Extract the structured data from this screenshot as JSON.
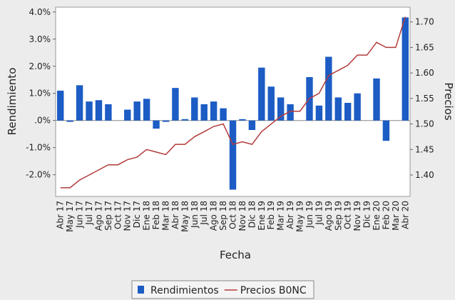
{
  "chart_data": {
    "type": "bar-line",
    "x_label": "Fecha",
    "y_label": "Rendimiento",
    "y2_label": "Precios",
    "categories": [
      "Abr 17",
      "May 17",
      "Jun 17",
      "Jul 17",
      "Ago 17",
      "Sep 17",
      "Oct 17",
      "Nov 17",
      "Dic 17",
      "Ene 18",
      "Feb 18",
      "Mar 18",
      "Abr 18",
      "May 18",
      "Jun 18",
      "Jul 18",
      "Ago 18",
      "Sep 18",
      "Oct 18",
      "Nov 18",
      "Dic 18",
      "Ene 19",
      "Feb 19",
      "Mar 19",
      "Abr 19",
      "May 19",
      "Jun 19",
      "Jul 19",
      "Ago 19",
      "Sep 19",
      "Oct 19",
      "Nov 19",
      "Dic 19",
      "Ene 20",
      "Feb 20",
      "Mar 20",
      "Abr 20"
    ],
    "series": [
      {
        "name": "Rendimientos",
        "type": "bar",
        "color": "#1c5cc4",
        "values": [
          1.1,
          -0.05,
          1.3,
          0.7,
          0.75,
          0.6,
          0.0,
          0.4,
          0.7,
          0.8,
          -0.3,
          -0.05,
          1.2,
          0.05,
          0.85,
          0.6,
          0.7,
          0.45,
          -2.55,
          0.05,
          -0.35,
          1.95,
          1.25,
          0.85,
          0.6,
          0.0,
          1.6,
          0.55,
          2.35,
          0.85,
          0.65,
          1.0,
          0.0,
          1.55,
          -0.75,
          0.0,
          3.8
        ]
      },
      {
        "name": "Precios B0NC",
        "type": "line",
        "axis": "y2",
        "color": "#b33a3a",
        "values": [
          1.375,
          1.375,
          1.39,
          1.4,
          1.41,
          1.42,
          1.42,
          1.43,
          1.435,
          1.45,
          1.445,
          1.44,
          1.46,
          1.46,
          1.475,
          1.485,
          1.495,
          1.5,
          1.46,
          1.465,
          1.46,
          1.485,
          1.5,
          1.515,
          1.525,
          1.525,
          1.55,
          1.56,
          1.595,
          1.605,
          1.615,
          1.635,
          1.635,
          1.66,
          1.65,
          1.65,
          1.71
        ]
      }
    ],
    "ylim": [
      -2.8,
      4.18
    ],
    "yticks": [
      {
        "value": -2.0,
        "label": "-2.0%"
      },
      {
        "value": -1.0,
        "label": "-1.0%"
      },
      {
        "value": 0,
        "label": ".0%"
      },
      {
        "value": 1.0,
        "label": "1.0%"
      },
      {
        "value": 2.0,
        "label": "2.0%"
      },
      {
        "value": 3.0,
        "label": "3.0%"
      },
      {
        "value": 4.0,
        "label": "4.0%"
      }
    ],
    "y2lim": [
      1.358,
      1.729
    ],
    "y2ticks": [
      {
        "value": 1.4,
        "label": "1.40"
      },
      {
        "value": 1.45,
        "label": "1.45"
      },
      {
        "value": 1.5,
        "label": "1.50"
      },
      {
        "value": 1.55,
        "label": "1.55"
      },
      {
        "value": 1.6,
        "label": "1.60"
      },
      {
        "value": 1.65,
        "label": "1.65"
      },
      {
        "value": 1.7,
        "label": "1.70"
      }
    ],
    "legend": "bottom"
  }
}
